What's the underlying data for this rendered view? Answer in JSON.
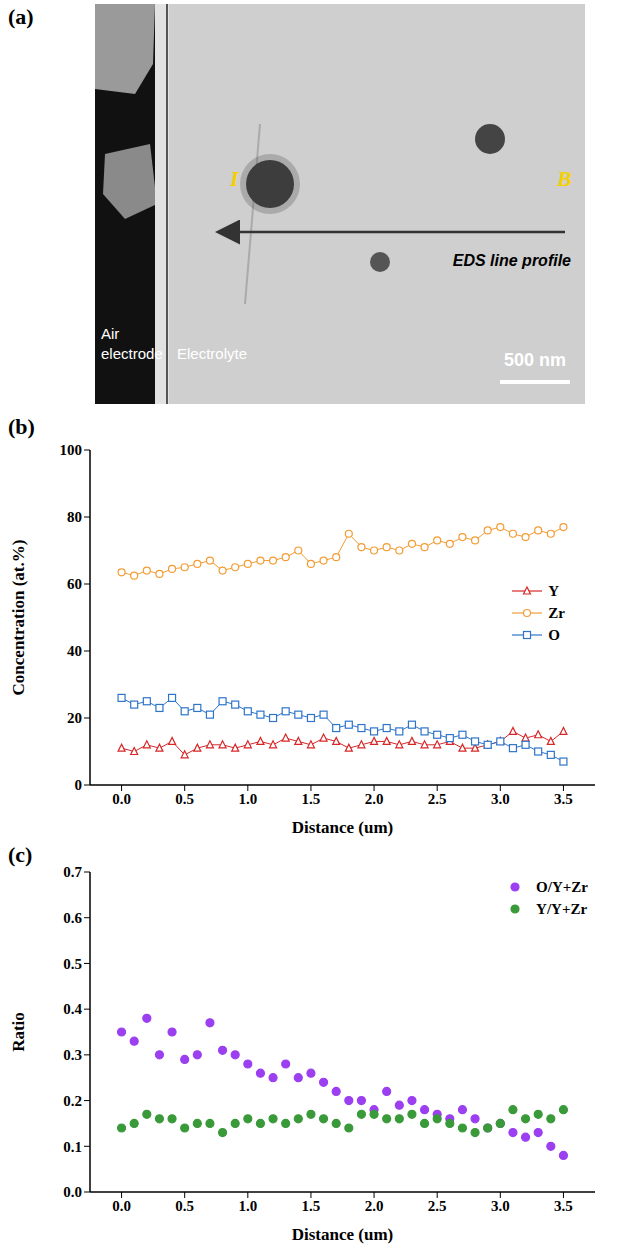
{
  "image_panel": {
    "letter": "(a)",
    "start_label": "I",
    "end_label": "B",
    "arrow_label": "EDS line profile",
    "region_left": "Air electrode",
    "region_right": "Electrolyte",
    "scale_bar": "500 nm"
  },
  "chart_data": [
    {
      "letter": "(b)",
      "type": "line",
      "x_label": "Distance (um)",
      "y_label": "Concentration (at.%)",
      "xlim": [
        -0.25,
        3.75
      ],
      "xticks": [
        {
          "value": 0,
          "label": "0.0"
        },
        0.5,
        {
          "value": 1,
          "label": "1.0"
        },
        1.5,
        {
          "value": 2,
          "label": "2.0"
        },
        2.5,
        {
          "value": 3,
          "label": "3.0"
        },
        3.5
      ],
      "ylim": [
        0,
        100
      ],
      "yticks": [
        0,
        20,
        40,
        60,
        80,
        100
      ],
      "legend": "right",
      "x": [
        0,
        0.1,
        0.2,
        0.3,
        0.4,
        0.5,
        0.6,
        0.7,
        0.8,
        0.9,
        1.0,
        1.1,
        1.2,
        1.3,
        1.4,
        1.5,
        1.6,
        1.7,
        1.8,
        1.9,
        2.0,
        2.1,
        2.2,
        2.3,
        2.4,
        2.5,
        2.6,
        2.7,
        2.8,
        2.9,
        3.0,
        3.1,
        3.2,
        3.3,
        3.4,
        3.5
      ],
      "series": [
        {
          "name": "Y",
          "color": "#d62728",
          "marker": "triangle",
          "line_style": "solid",
          "values": [
            11,
            10,
            12,
            11,
            13,
            9,
            11,
            12,
            12,
            11,
            12,
            13,
            12,
            14,
            13,
            12,
            14,
            13,
            11,
            12,
            13,
            13,
            12,
            13,
            12,
            12,
            13,
            11,
            11,
            12,
            13,
            16,
            14,
            15,
            13,
            16
          ]
        },
        {
          "name": "Zr",
          "color": "#f39c34",
          "marker": "circle",
          "line_style": "solid",
          "values": [
            63.5,
            62.5,
            64,
            63,
            64.5,
            65,
            66,
            67,
            64,
            65,
            66,
            67,
            67,
            68,
            70,
            66,
            67,
            68,
            75,
            71,
            70,
            71,
            70,
            72,
            71,
            73,
            72,
            74,
            73,
            76,
            77,
            75,
            74,
            76,
            75,
            77
          ]
        },
        {
          "name": "O",
          "color": "#2e75c9",
          "marker": "square",
          "line_style": "solid",
          "values": [
            26,
            24,
            25,
            23,
            26,
            22,
            23,
            21,
            25,
            24,
            22,
            21,
            20,
            22,
            21,
            20,
            21,
            17,
            18,
            17,
            16,
            17,
            16,
            18,
            16,
            15,
            14,
            15,
            13,
            12,
            13,
            11,
            12,
            10,
            9,
            7
          ]
        }
      ]
    },
    {
      "letter": "(c)",
      "type": "scatter",
      "x_label": "Distance (um)",
      "y_label": "Ratio",
      "xlim": [
        -0.25,
        3.75
      ],
      "xticks": [
        {
          "value": 0,
          "label": "0.0"
        },
        0.5,
        {
          "value": 1,
          "label": "1.0"
        },
        1.5,
        {
          "value": 2,
          "label": "2.0"
        },
        2.5,
        {
          "value": 3,
          "label": "3.0"
        },
        3.5
      ],
      "ylim": [
        0,
        0.7
      ],
      "yticks": [
        {
          "value": 0,
          "label": "0.0"
        },
        0.1,
        0.2,
        0.3,
        0.4,
        0.5,
        0.6,
        0.7
      ],
      "legend": "upper right",
      "x": [
        0,
        0.1,
        0.2,
        0.3,
        0.4,
        0.5,
        0.6,
        0.7,
        0.8,
        0.9,
        1.0,
        1.1,
        1.2,
        1.3,
        1.4,
        1.5,
        1.6,
        1.7,
        1.8,
        1.9,
        2.0,
        2.1,
        2.2,
        2.3,
        2.4,
        2.5,
        2.6,
        2.7,
        2.8,
        2.9,
        3.0,
        3.1,
        3.2,
        3.3,
        3.4,
        3.5
      ],
      "series": [
        {
          "name": "O/Y+Zr",
          "color": "#9b3ff0",
          "marker": "circle",
          "values": [
            0.35,
            0.33,
            0.38,
            0.3,
            0.35,
            0.29,
            0.3,
            0.37,
            0.31,
            0.3,
            0.28,
            0.26,
            0.25,
            0.28,
            0.25,
            0.26,
            0.24,
            0.22,
            0.2,
            0.2,
            0.18,
            0.22,
            0.19,
            0.2,
            0.18,
            0.17,
            0.16,
            0.18,
            0.16,
            0.14,
            0.15,
            0.13,
            0.12,
            0.13,
            0.1,
            0.08
          ]
        },
        {
          "name": "Y/Y+Zr",
          "color": "#3a9a3a",
          "marker": "circle",
          "values": [
            0.14,
            0.15,
            0.17,
            0.16,
            0.16,
            0.14,
            0.15,
            0.15,
            0.13,
            0.15,
            0.16,
            0.15,
            0.16,
            0.15,
            0.16,
            0.17,
            0.16,
            0.15,
            0.14,
            0.17,
            0.17,
            0.16,
            0.16,
            0.17,
            0.15,
            0.16,
            0.15,
            0.14,
            0.13,
            0.14,
            0.15,
            0.18,
            0.16,
            0.17,
            0.16,
            0.18
          ]
        }
      ]
    }
  ]
}
